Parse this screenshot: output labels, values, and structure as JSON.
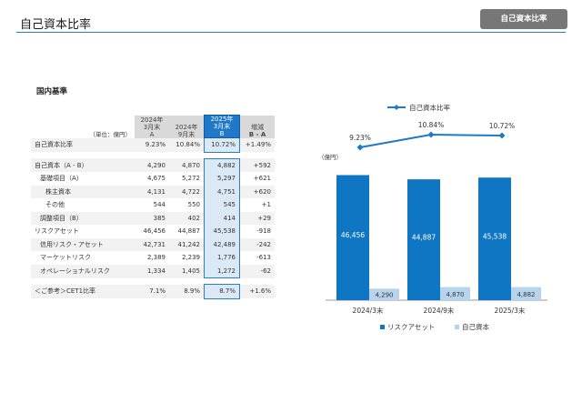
{
  "header": {
    "title": "自己資本比率",
    "badge": "自己資本比率"
  },
  "section_title": "国内基準",
  "table": {
    "unit_label": "（単位：億円）",
    "columns": [
      {
        "l1": "2024年",
        "l2": "3月末",
        "l3": "A"
      },
      {
        "l1": "2024年",
        "l2": "9月末",
        "l3": ""
      },
      {
        "l1": "2025年",
        "l2": "3月末",
        "l3": "B"
      },
      {
        "l1": "",
        "l2": "増減",
        "l3": "B - A"
      }
    ],
    "rows": [
      {
        "label": "自己資本比率",
        "a": "9.23%",
        "sep": "10.84%",
        "b": "10.72%",
        "diff": "+1.49%"
      },
      {
        "label": "自己資本（A - B）",
        "a": "4,290",
        "sep": "4,870",
        "b": "4,882",
        "diff": "+592"
      },
      {
        "label": "基礎項目（A）",
        "a": "4,675",
        "sep": "5,272",
        "b": "5,297",
        "diff": "+621"
      },
      {
        "label": "株主資本",
        "a": "4,131",
        "sep": "4,722",
        "b": "4,751",
        "diff": "+620"
      },
      {
        "label": "その他",
        "a": "544",
        "sep": "550",
        "b": "545",
        "diff": "+1"
      },
      {
        "label": "調整項目（B）",
        "a": "385",
        "sep": "402",
        "b": "414",
        "diff": "+29"
      },
      {
        "label": "リスクアセット",
        "a": "46,456",
        "sep": "44,887",
        "b": "45,538",
        "diff": "-918"
      },
      {
        "label": "信用リスク・アセット",
        "a": "42,731",
        "sep": "41,242",
        "b": "42,489",
        "diff": "-242"
      },
      {
        "label": "マーケットリスク",
        "a": "2,389",
        "sep": "2,239",
        "b": "1,776",
        "diff": "-613"
      },
      {
        "label": "オペレーショナルリスク",
        "a": "1,334",
        "sep": "1,405",
        "b": "1,272",
        "diff": "-62"
      },
      {
        "label": "＜ご参考＞CET1比率",
        "a": "7.1%",
        "sep": "8.9%",
        "b": "8.7%",
        "diff": "+1.6%"
      }
    ]
  },
  "chart_data": {
    "type": "bar",
    "categories": [
      "2024/3末",
      "2024/9末",
      "2025/3末"
    ],
    "unit_label": "（億円）",
    "series": [
      {
        "name": "リスクアセット",
        "values": [
          46456,
          44887,
          45538
        ],
        "labels": [
          "46,456",
          "44,887",
          "45,538"
        ],
        "color": "#0f76c4"
      },
      {
        "name": "自己資本",
        "values": [
          4290,
          4870,
          4882
        ],
        "labels": [
          "4,290",
          "4,870",
          "4,882"
        ],
        "color": "#b7d4ee"
      }
    ],
    "line": {
      "name": "自己資本比率",
      "values": [
        9.23,
        10.84,
        10.72
      ],
      "labels": [
        "9.23%",
        "10.84%",
        "10.72%"
      ],
      "color": "#1f78c8"
    },
    "ylim": [
      0,
      50000
    ]
  },
  "colors": {
    "accent": "#1f78c8",
    "title_rule": "#2a7fc1",
    "badge_bg": "#777777"
  }
}
